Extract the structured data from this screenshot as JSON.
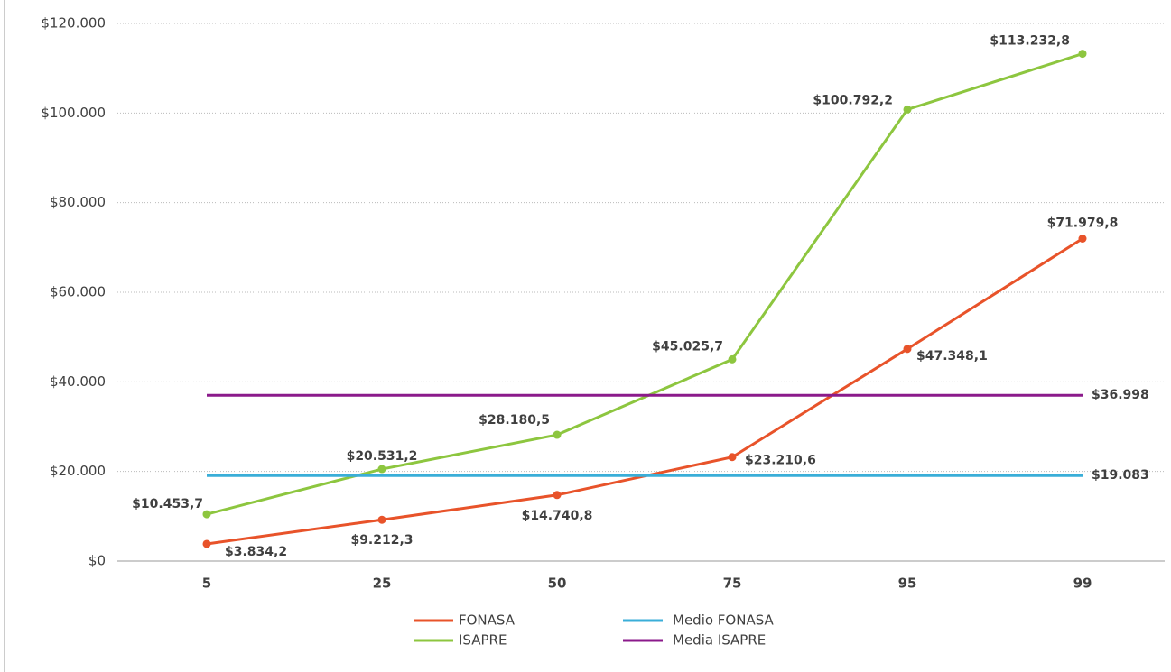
{
  "chart_data": {
    "type": "line",
    "categories": [
      "5",
      "25",
      "50",
      "75",
      "95",
      "99"
    ],
    "series": [
      {
        "name": "FONASA",
        "color": "#e8532a",
        "markers": true,
        "values": [
          3834.2,
          9212.3,
          14740.8,
          23210.6,
          47348.1,
          71979.8
        ],
        "value_labels": [
          "$3.834,2",
          "$9.212,3",
          "$14.740,8",
          "$23.210,6",
          "$47.348,1",
          "$71.979,8"
        ]
      },
      {
        "name": "ISAPRE",
        "color": "#8dc63f",
        "markers": true,
        "values": [
          10453.7,
          20531.2,
          28180.5,
          45025.7,
          100792.2,
          113232.8
        ],
        "value_labels": [
          "$10.453,7",
          "$20.531,2",
          "$28.180,5",
          "$45.025,7",
          "$100.792,2",
          "$113.232,8"
        ]
      },
      {
        "name": "Medio FONASA",
        "color": "#3aaed8",
        "markers": false,
        "values": [
          19083,
          19083,
          19083,
          19083,
          19083,
          19083
        ],
        "value_labels": [
          null,
          null,
          null,
          null,
          null,
          "$19.083"
        ]
      },
      {
        "name": "Media ISAPRE",
        "color": "#8b1a8b",
        "markers": false,
        "values": [
          36998,
          36998,
          36998,
          36998,
          36998,
          36998
        ],
        "value_labels": [
          null,
          null,
          null,
          null,
          null,
          "$36.998"
        ]
      }
    ],
    "ylim": [
      0,
      120000
    ],
    "yticks": [
      {
        "value": 0,
        "label": "$0"
      },
      {
        "value": 20000,
        "label": "$20.000"
      },
      {
        "value": 40000,
        "label": "$40.000"
      },
      {
        "value": 60000,
        "label": "$60.000"
      },
      {
        "value": 80000,
        "label": "$80.000"
      },
      {
        "value": 100000,
        "label": "$100.000"
      },
      {
        "value": 120000,
        "label": "$120.000"
      }
    ],
    "grid": true,
    "legend": "bottom"
  }
}
